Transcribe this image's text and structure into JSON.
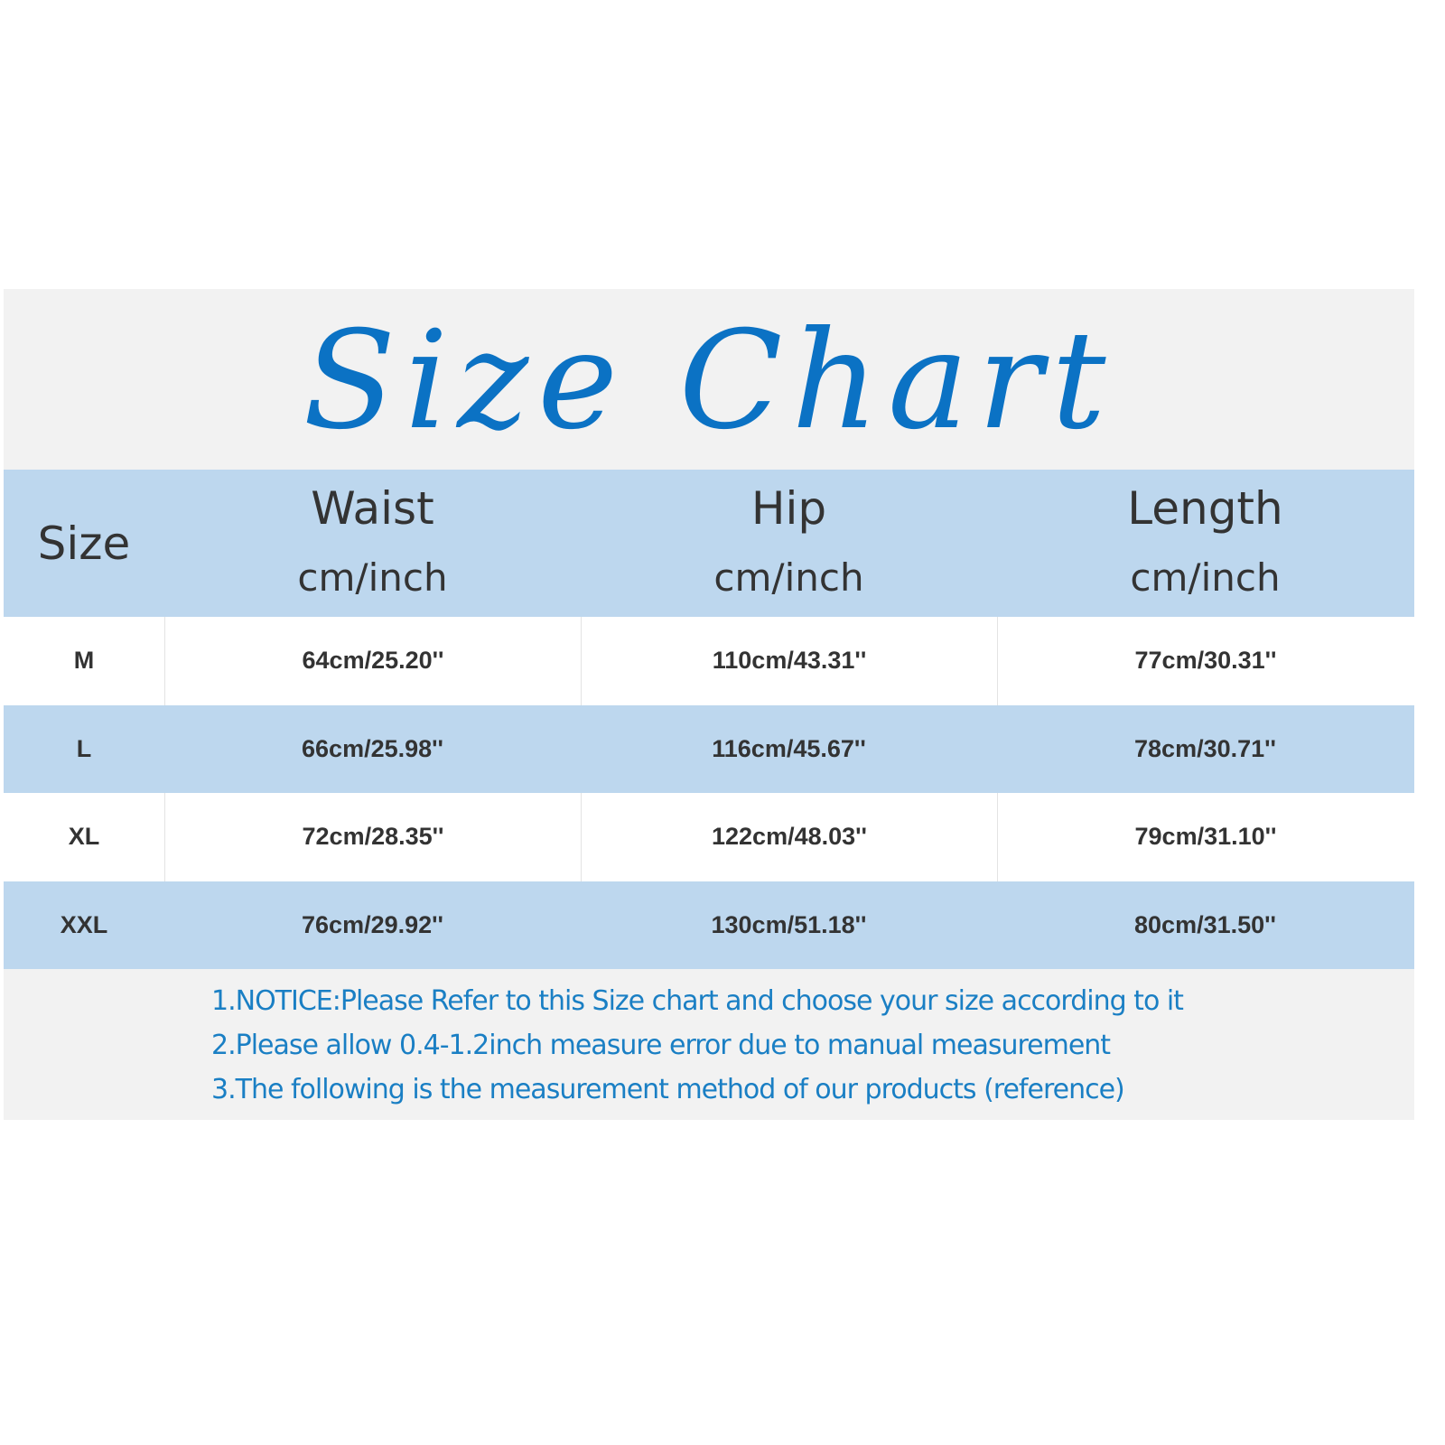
{
  "title": "Size Chart",
  "colors": {
    "title": "#0b72c4",
    "header_bg": "#bdd7ee",
    "panel_bg": "#f2f2f2",
    "notes": "#1a7fc4"
  },
  "header": {
    "size": "Size",
    "columns": [
      {
        "name": "Waist",
        "unit": "cm/inch"
      },
      {
        "name": "Hip",
        "unit": "cm/inch"
      },
      {
        "name": "Length",
        "unit": "cm/inch"
      }
    ]
  },
  "rows": [
    {
      "size": "M",
      "waist": "64cm/25.20''",
      "hip": "110cm/43.31''",
      "length": "77cm/30.31''"
    },
    {
      "size": "L",
      "waist": "66cm/25.98''",
      "hip": "116cm/45.67''",
      "length": "78cm/30.71''"
    },
    {
      "size": "XL",
      "waist": "72cm/28.35''",
      "hip": "122cm/48.03''",
      "length": "79cm/31.10''"
    },
    {
      "size": "XXL",
      "waist": "76cm/29.92''",
      "hip": "130cm/51.18''",
      "length": "80cm/31.50''"
    }
  ],
  "notes": [
    "1.NOTICE:Please Refer to this Size chart and choose your size according to it",
    "2.Please allow 0.4-1.2inch measure error due to manual measurement",
    "3.The following is the measurement method of our products (reference)"
  ]
}
